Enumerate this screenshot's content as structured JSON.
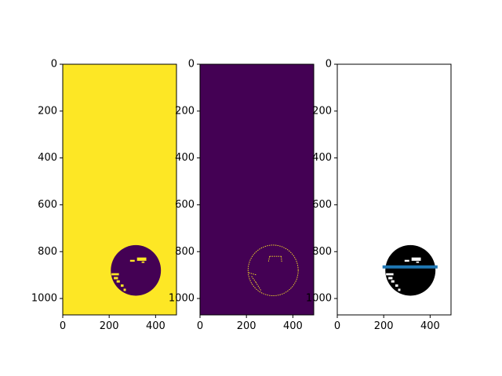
{
  "figure": {
    "background": "#ffffff",
    "panel_count": 3
  },
  "chart_data": [
    {
      "type": "heatmap",
      "panel": "binary-mask",
      "colormap": "viridis",
      "background_color": "#fde725",
      "foreground_color": "#440154",
      "xlim": [
        0,
        490
      ],
      "ylim": [
        1070,
        0
      ],
      "x_ticks": [
        0,
        200,
        400
      ],
      "y_ticks": [
        0,
        200,
        400,
        600,
        800,
        1000
      ],
      "xlabel": "",
      "ylabel": "",
      "title": "",
      "blob": {
        "cx": 315,
        "cy": 880,
        "r": 108
      },
      "speckles": [
        {
          "x": 320,
          "y": 825,
          "w": 40,
          "h": 14
        },
        {
          "x": 290,
          "y": 835,
          "w": 20,
          "h": 8
        },
        {
          "x": 340,
          "y": 842,
          "w": 12,
          "h": 6
        },
        {
          "x": 210,
          "y": 892,
          "w": 32,
          "h": 9
        },
        {
          "x": 220,
          "y": 908,
          "w": 18,
          "h": 10
        },
        {
          "x": 232,
          "y": 922,
          "w": 14,
          "h": 10
        },
        {
          "x": 250,
          "y": 940,
          "w": 12,
          "h": 10
        },
        {
          "x": 262,
          "y": 958,
          "w": 10,
          "h": 10
        }
      ]
    },
    {
      "type": "heatmap",
      "panel": "edge-map",
      "colormap": "viridis",
      "background_color": "#440154",
      "foreground_color": "#fde725",
      "xlim": [
        0,
        490
      ],
      "ylim": [
        1070,
        0
      ],
      "x_ticks": [
        0,
        200,
        400
      ],
      "y_ticks": [
        0,
        200,
        400,
        600,
        800,
        1000
      ],
      "xlabel": "",
      "ylabel": "",
      "title": "",
      "edge_circle": {
        "cx": 315,
        "cy": 880,
        "r": 108
      },
      "edge_fragments": [
        {
          "x1": 300,
          "y1": 820,
          "x2": 350,
          "y2": 820
        },
        {
          "x1": 300,
          "y1": 820,
          "x2": 295,
          "y2": 842
        },
        {
          "x1": 350,
          "y1": 820,
          "x2": 352,
          "y2": 845
        },
        {
          "x1": 210,
          "y1": 890,
          "x2": 245,
          "y2": 900
        },
        {
          "x1": 222,
          "y1": 905,
          "x2": 240,
          "y2": 930
        },
        {
          "x1": 240,
          "y1": 930,
          "x2": 262,
          "y2": 965
        }
      ]
    },
    {
      "type": "heatmap",
      "panel": "mask-with-line",
      "colormap": "gray",
      "background_color": "#ffffff",
      "foreground_color": "#000000",
      "xlim": [
        0,
        490
      ],
      "ylim": [
        1070,
        0
      ],
      "x_ticks": [
        0,
        200,
        400
      ],
      "y_ticks": [
        0,
        200,
        400,
        600,
        800,
        1000
      ],
      "xlabel": "",
      "ylabel": "",
      "title": "",
      "blob": {
        "cx": 315,
        "cy": 880,
        "r": 108
      },
      "speckles": [
        {
          "x": 320,
          "y": 825,
          "w": 40,
          "h": 14
        },
        {
          "x": 290,
          "y": 835,
          "w": 20,
          "h": 8
        },
        {
          "x": 340,
          "y": 842,
          "w": 12,
          "h": 6
        },
        {
          "x": 210,
          "y": 892,
          "w": 32,
          "h": 9
        },
        {
          "x": 220,
          "y": 908,
          "w": 18,
          "h": 10
        },
        {
          "x": 232,
          "y": 922,
          "w": 14,
          "h": 10
        },
        {
          "x": 250,
          "y": 940,
          "w": 12,
          "h": 10
        },
        {
          "x": 262,
          "y": 958,
          "w": 10,
          "h": 10
        }
      ],
      "line": {
        "x": [
          195,
          432
        ],
        "y": [
          865,
          865
        ],
        "color": "#1f77b4"
      }
    }
  ]
}
